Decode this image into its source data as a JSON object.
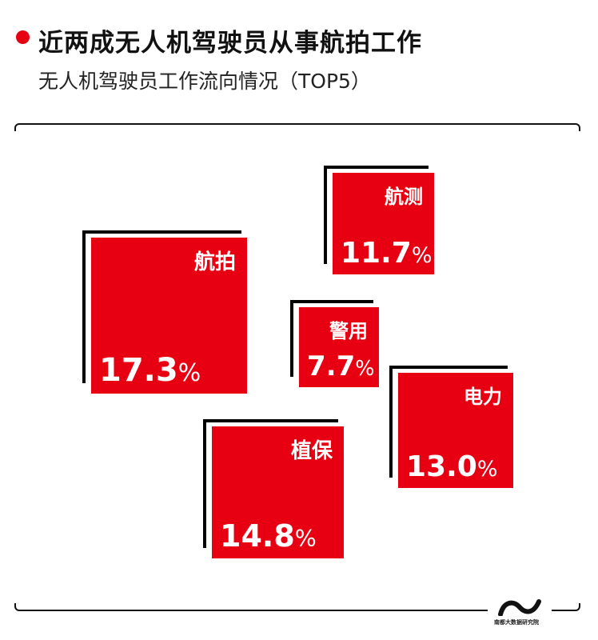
{
  "header": {
    "title": "近两成无人机驾驶员从事航拍工作",
    "subtitle": "无人机驾驶员工作流向情况（TOP5）",
    "dot_color": "#e60012"
  },
  "chart_data": {
    "type": "tile",
    "title": "近两成无人机驾驶员从事航拍工作",
    "subtitle": "无人机驾驶员工作流向情况（TOP5）",
    "unit": "%",
    "categories": [
      "航拍",
      "航测",
      "警用",
      "电力",
      "植保"
    ],
    "values": [
      17.3,
      11.7,
      7.7,
      13.0,
      14.8
    ],
    "value_labels": [
      "17.3",
      "11.7",
      "7.7",
      "13.0",
      "14.8"
    ],
    "tile_color": "#e60012",
    "corner_color": "#000000"
  },
  "footer": {
    "logo_text": "南都大数据研究院"
  }
}
